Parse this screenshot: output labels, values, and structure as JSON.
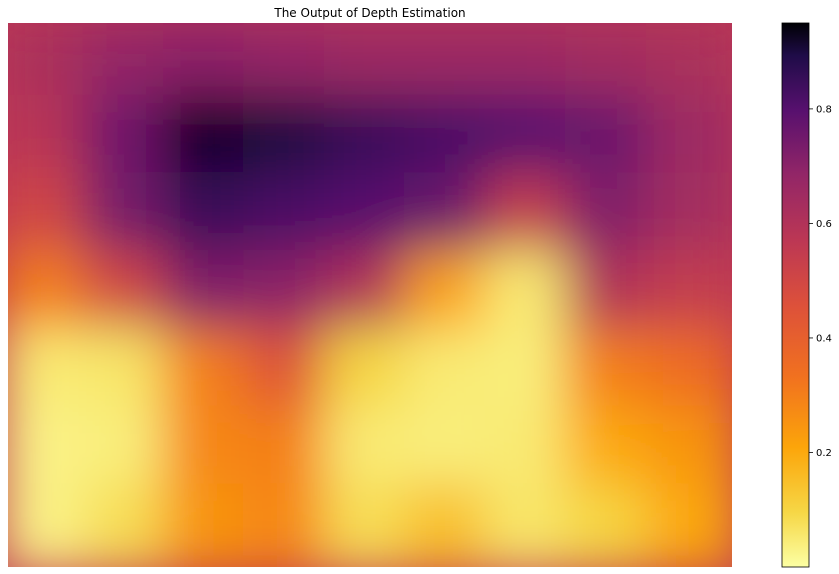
{
  "chart_data": {
    "type": "heatmap",
    "title": "The Output of Depth Estimation",
    "colormap": "inferno",
    "colorbar_reversed": true,
    "axis_visible": false,
    "colorbar": {
      "range": [
        0.0,
        0.95
      ],
      "ticks": [
        0.2,
        0.4,
        0.6,
        0.8
      ],
      "tick_labels": [
        "0.2",
        "0.4",
        "0.6",
        "0.8"
      ]
    },
    "grid": {
      "rows": 7,
      "cols": 9,
      "values": [
        [
          0.62,
          0.68,
          0.7,
          0.68,
          0.66,
          0.66,
          0.66,
          0.64,
          0.62
        ],
        [
          0.58,
          0.75,
          0.92,
          0.9,
          0.85,
          0.82,
          0.8,
          0.76,
          0.66
        ],
        [
          0.5,
          0.74,
          0.85,
          0.82,
          0.8,
          0.76,
          0.55,
          0.72,
          0.64
        ],
        [
          0.3,
          0.5,
          0.72,
          0.7,
          0.6,
          0.22,
          0.05,
          0.6,
          0.55
        ],
        [
          0.05,
          0.06,
          0.3,
          0.45,
          0.1,
          0.05,
          0.04,
          0.3,
          0.35
        ],
        [
          0.03,
          0.04,
          0.28,
          0.3,
          0.05,
          0.04,
          0.05,
          0.2,
          0.25
        ],
        [
          0.03,
          0.08,
          0.25,
          0.28,
          0.08,
          0.15,
          0.06,
          0.1,
          0.2
        ]
      ]
    }
  }
}
